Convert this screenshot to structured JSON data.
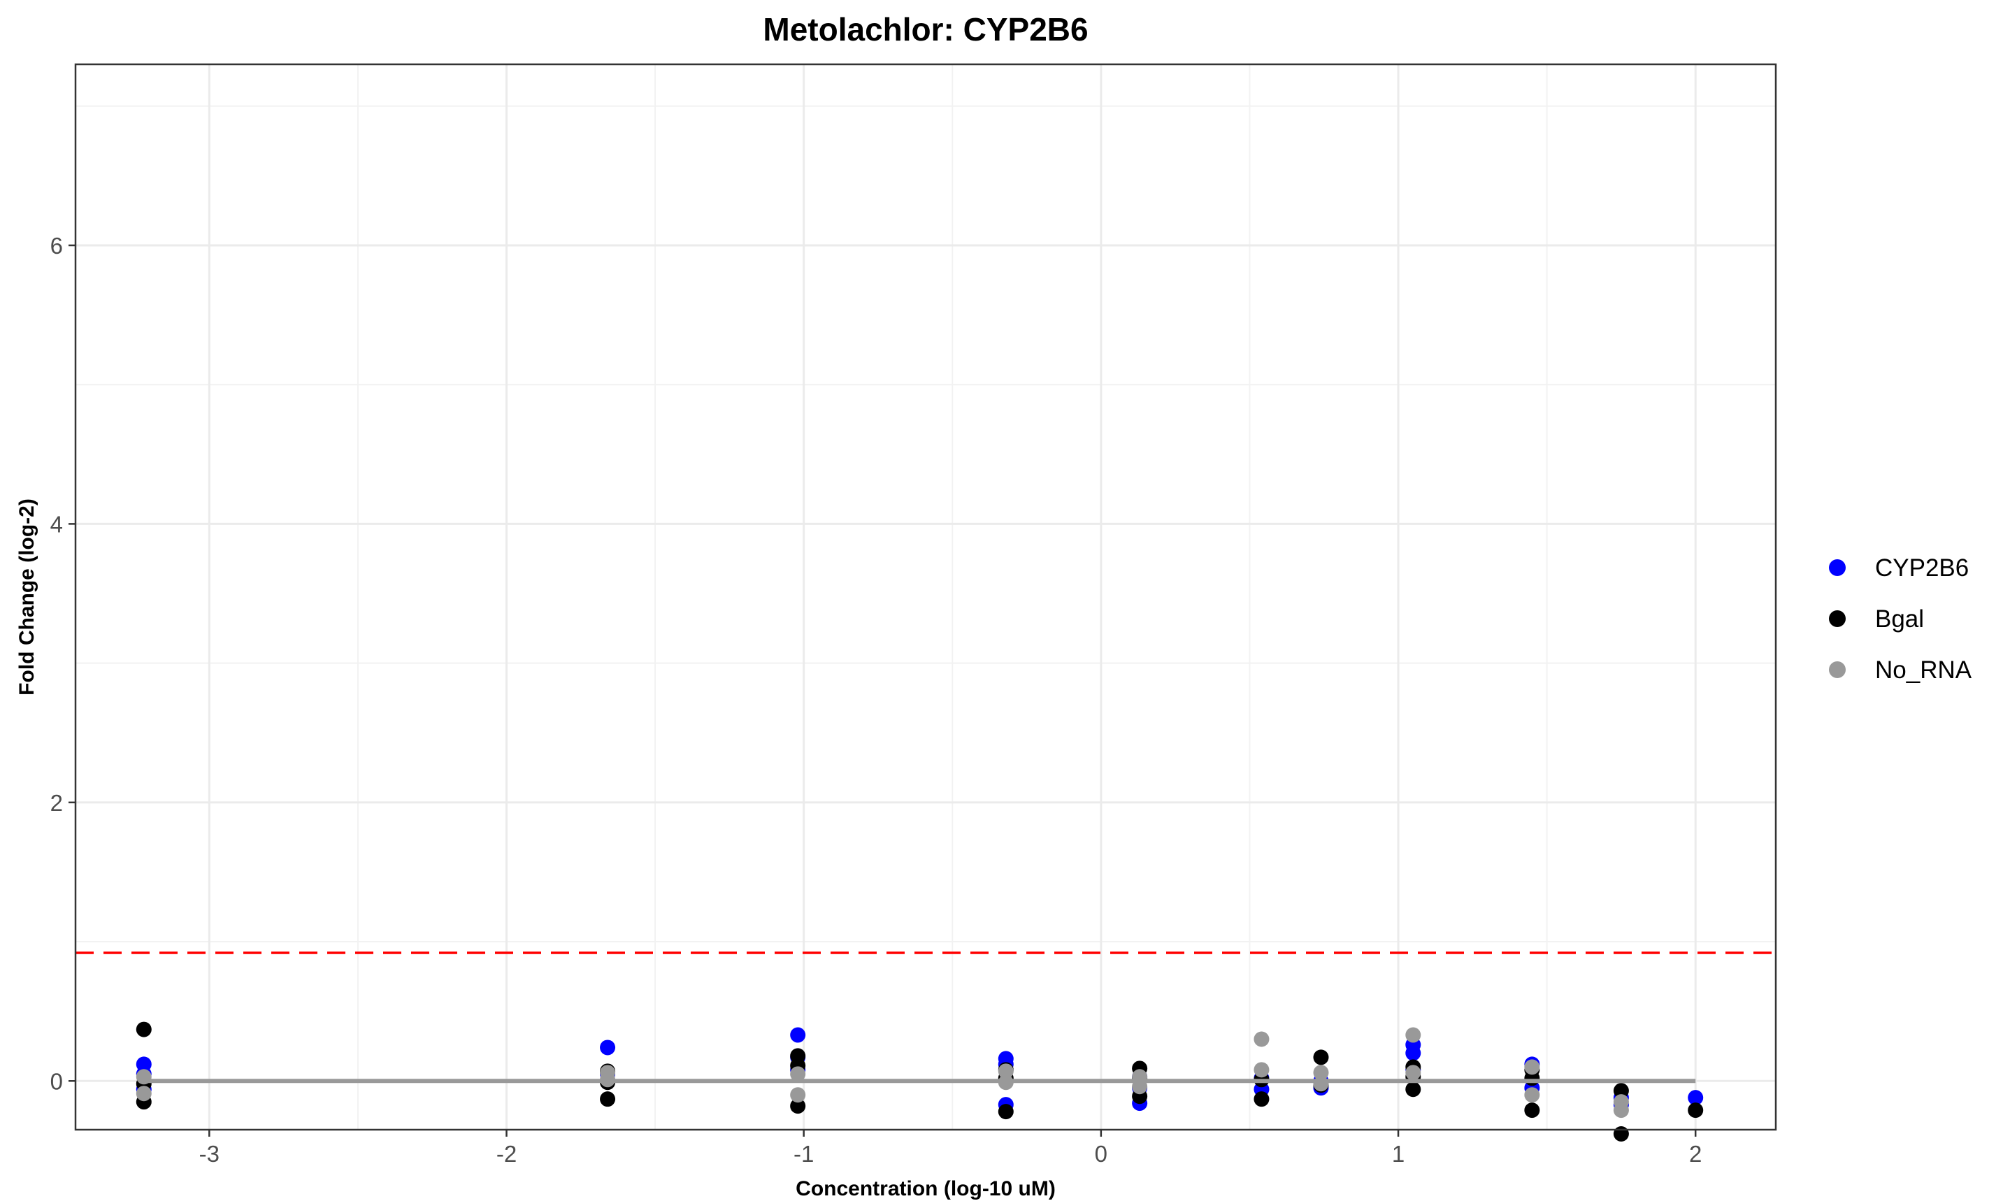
{
  "chart_data": {
    "type": "scatter",
    "title": "Metolachlor: CYP2B6",
    "xlabel": "Concentration (log-10 uM)",
    "ylabel": "Fold Change (log-2)",
    "xlim": [
      -3.45,
      2.27
    ],
    "ylim": [
      -0.35,
      7.3
    ],
    "x_ticks": [
      "-3",
      "-2",
      "-1",
      "0",
      "1",
      "2"
    ],
    "y_ticks": [
      "0",
      "2",
      "4",
      "6"
    ],
    "grid": true,
    "legend_position": "right",
    "threshold": {
      "value": 0.92,
      "color": "#ff0000",
      "style": "dashed"
    },
    "baseline": {
      "value": 0,
      "x_range": [
        -3.22,
        2.0
      ],
      "color": "#999999"
    },
    "series": [
      {
        "name": "CYP2B6",
        "color": "#0000ff",
        "points": [
          [
            -3.22,
            0.12
          ],
          [
            -3.22,
            0.05
          ],
          [
            -3.22,
            -0.06
          ],
          [
            -1.66,
            0.24
          ],
          [
            -1.66,
            0.05
          ],
          [
            -1.02,
            0.33
          ],
          [
            -1.02,
            0.17
          ],
          [
            -1.02,
            0.08
          ],
          [
            -0.32,
            0.16
          ],
          [
            -0.32,
            0.12
          ],
          [
            -0.32,
            -0.17
          ],
          [
            0.13,
            -0.16
          ],
          [
            0.13,
            -0.05
          ],
          [
            0.13,
            0.03
          ],
          [
            0.54,
            -0.06
          ],
          [
            0.54,
            0.02
          ],
          [
            0.74,
            -0.05
          ],
          [
            0.74,
            0.0
          ],
          [
            1.05,
            0.26
          ],
          [
            1.05,
            0.2
          ],
          [
            1.05,
            0.08
          ],
          [
            1.45,
            0.12
          ],
          [
            1.45,
            -0.05
          ],
          [
            1.75,
            -0.12
          ],
          [
            1.75,
            -0.17
          ],
          [
            2.0,
            -0.12
          ]
        ]
      },
      {
        "name": "Bgal",
        "color": "#000000",
        "points": [
          [
            -3.22,
            0.37
          ],
          [
            -3.22,
            -0.15
          ],
          [
            -3.22,
            -0.02
          ],
          [
            -1.66,
            0.07
          ],
          [
            -1.66,
            -0.13
          ],
          [
            -1.66,
            -0.01
          ],
          [
            -1.02,
            0.18
          ],
          [
            -1.02,
            0.11
          ],
          [
            -1.02,
            -0.18
          ],
          [
            -0.32,
            0.02
          ],
          [
            -0.32,
            -0.22
          ],
          [
            -0.32,
            0.08
          ],
          [
            0.13,
            0.09
          ],
          [
            0.13,
            -0.11
          ],
          [
            0.13,
            0.02
          ],
          [
            0.54,
            -0.13
          ],
          [
            0.54,
            0.01
          ],
          [
            0.74,
            0.17
          ],
          [
            0.74,
            -0.03
          ],
          [
            1.05,
            0.1
          ],
          [
            1.05,
            -0.06
          ],
          [
            1.05,
            0.03
          ],
          [
            1.45,
            0.02
          ],
          [
            1.45,
            -0.21
          ],
          [
            1.45,
            0.08
          ],
          [
            1.75,
            -0.07
          ],
          [
            1.75,
            -0.38
          ],
          [
            2.0,
            -0.21
          ]
        ]
      },
      {
        "name": "No_RNA",
        "color": "#999999",
        "points": [
          [
            -3.22,
            0.03
          ],
          [
            -3.22,
            -0.09
          ],
          [
            -1.66,
            0.01
          ],
          [
            -1.66,
            0.06
          ],
          [
            -1.02,
            -0.1
          ],
          [
            -1.02,
            0.05
          ],
          [
            -0.32,
            0.07
          ],
          [
            -0.32,
            -0.01
          ],
          [
            0.13,
            0.03
          ],
          [
            0.13,
            -0.04
          ],
          [
            0.54,
            0.3
          ],
          [
            0.54,
            0.08
          ],
          [
            0.74,
            0.06
          ],
          [
            0.74,
            -0.02
          ],
          [
            1.05,
            0.33
          ],
          [
            1.05,
            0.06
          ],
          [
            1.45,
            0.1
          ],
          [
            1.45,
            -0.1
          ],
          [
            1.75,
            -0.15
          ],
          [
            1.75,
            -0.21
          ]
        ]
      }
    ]
  }
}
